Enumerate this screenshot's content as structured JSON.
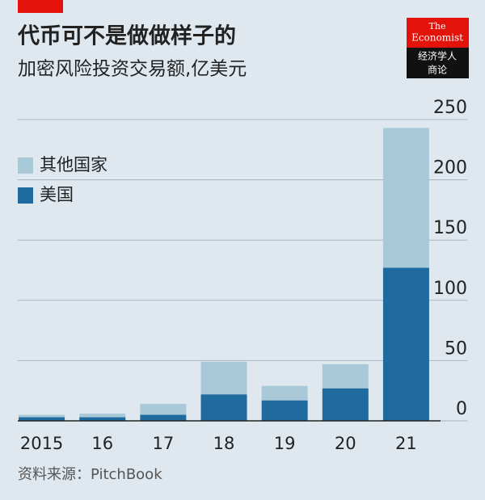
{
  "chart_data": {
    "type": "stacked-bar",
    "title": "代币可不是做做样子的",
    "subtitle": "加密风险投资交易额,亿美元",
    "brand": [
      "The",
      "Economist"
    ],
    "brand_sub": [
      "经济学人",
      "商论"
    ],
    "source": "资料来源：PitchBook",
    "categories": [
      "2015",
      "16",
      "17",
      "18",
      "19",
      "20",
      "21"
    ],
    "series": [
      {
        "name": "其他国家",
        "color": "#a9c9d9",
        "values": [
          2,
          3,
          9,
          27,
          12,
          20,
          116
        ]
      },
      {
        "name": "美国",
        "color": "#1f6a9e",
        "values": [
          3,
          3,
          5,
          22,
          17,
          27,
          127
        ]
      }
    ],
    "ylim": [
      0,
      250
    ],
    "yticks": [
      0,
      50,
      100,
      150,
      200,
      250
    ],
    "grid": true
  }
}
